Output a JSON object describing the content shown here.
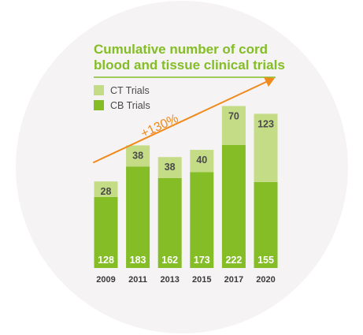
{
  "colors": {
    "background_circle": "#f5f3f3",
    "title": "#84bd26",
    "title_rule": "#84bd26",
    "ct_color": "#c5dc87",
    "cb_color": "#84bd26",
    "label_dark": "#4a4a4a",
    "label_light": "#ffffff",
    "axis_text": "#3a3a3a",
    "arrow": "#f08a1d"
  },
  "chart_data": {
    "type": "bar",
    "stacked": true,
    "title_lines": [
      "Cumulative number of cord",
      "blood and tissue clinical trials"
    ],
    "xlabel": "",
    "ylabel": "",
    "categories": [
      "2009",
      "2011",
      "2013",
      "2015",
      "2017",
      "2020"
    ],
    "series": [
      {
        "name": "CB Trials",
        "values": [
          128,
          183,
          162,
          173,
          222,
          155
        ]
      },
      {
        "name": "CT Trials",
        "values": [
          28,
          38,
          38,
          40,
          70,
          123
        ]
      }
    ],
    "ylim": [
      0,
      300
    ],
    "grid": false,
    "legend_position": "top-left",
    "annotation": {
      "text": "+130%",
      "shape": "rising arrow"
    }
  }
}
